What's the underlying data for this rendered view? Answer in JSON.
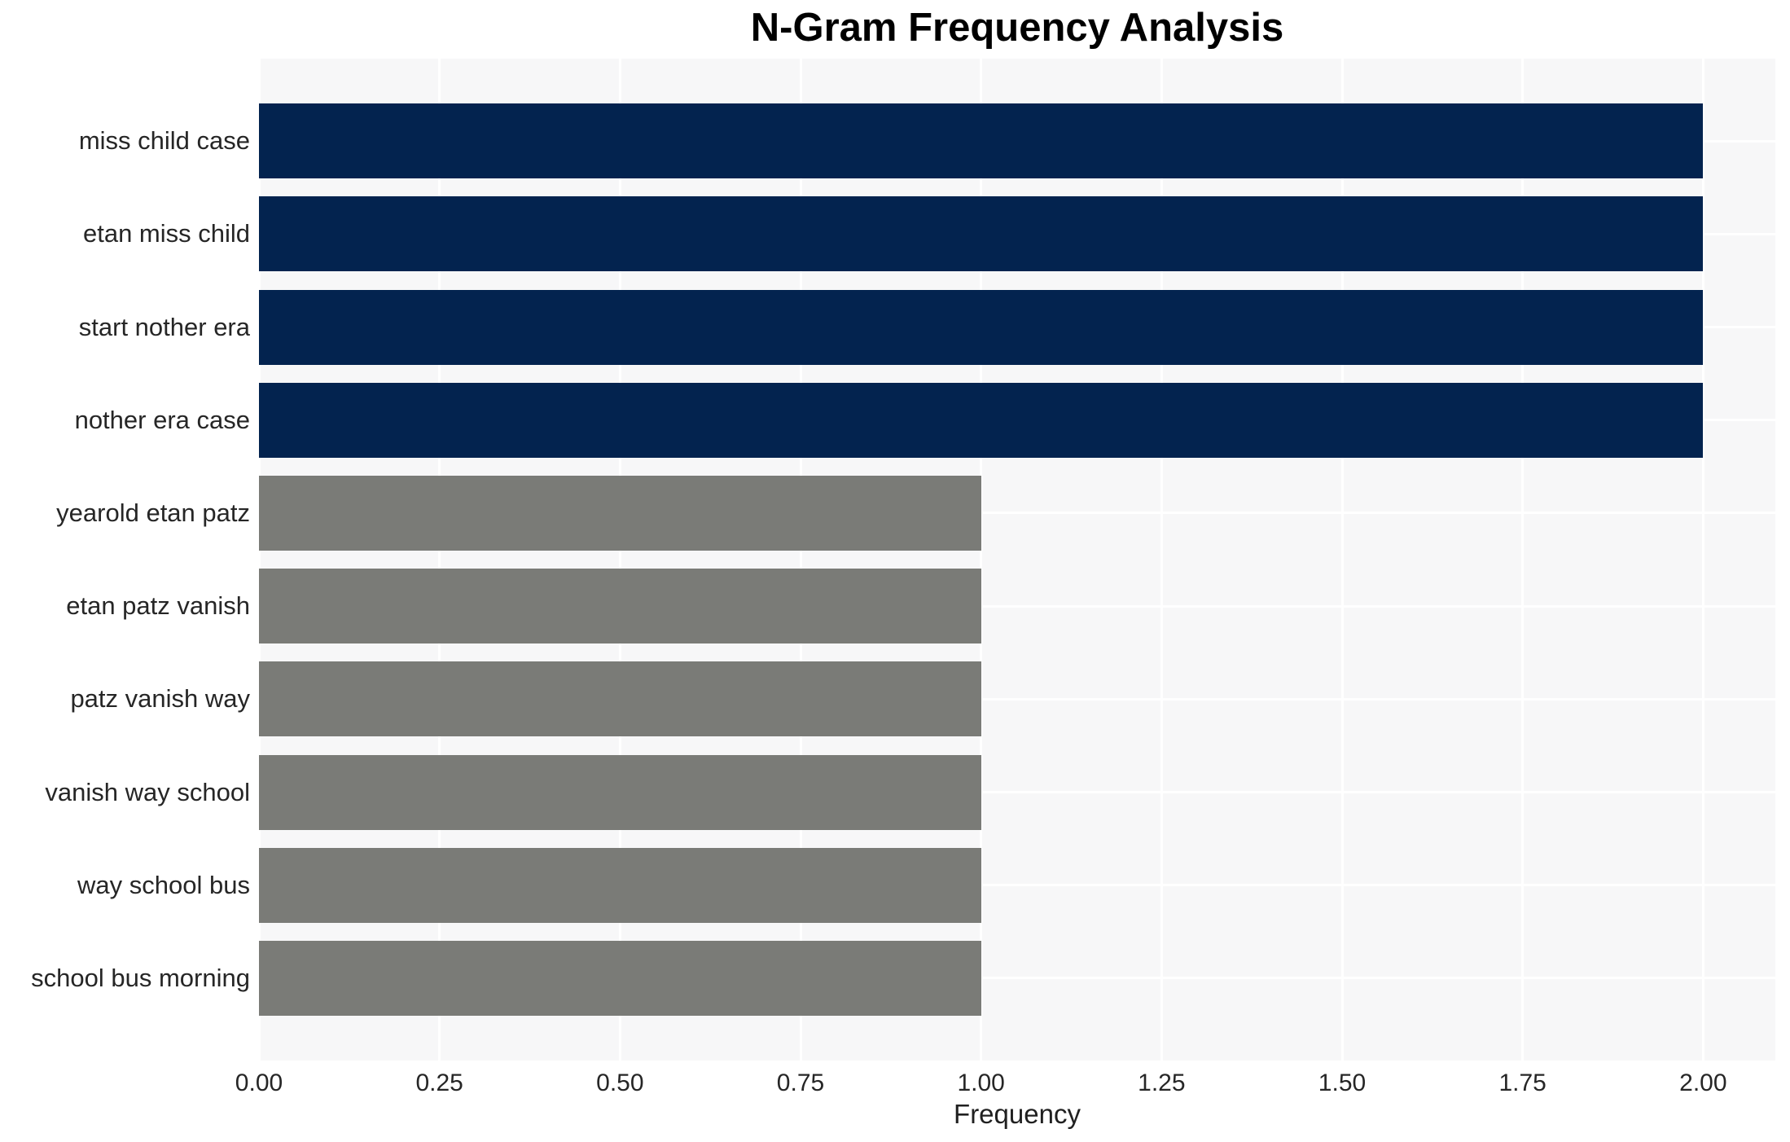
{
  "chart_data": {
    "type": "bar",
    "orientation": "horizontal",
    "title": "N-Gram Frequency Analysis",
    "xlabel": "Frequency",
    "ylabel": "",
    "categories": [
      "miss child case",
      "etan miss child",
      "start nother era",
      "nother era case",
      "yearold etan patz",
      "etan patz vanish",
      "patz vanish way",
      "vanish way school",
      "way school bus",
      "school bus morning"
    ],
    "values": [
      2,
      2,
      2,
      2,
      1,
      1,
      1,
      1,
      1,
      1
    ],
    "bar_colors": [
      "#03234f",
      "#03234f",
      "#03234f",
      "#03234f",
      "#7a7b77",
      "#7a7b77",
      "#7a7b77",
      "#7a7b77",
      "#7a7b77",
      "#7a7b77"
    ],
    "xlim": [
      0,
      2.1
    ],
    "xtick_values": [
      0,
      0.25,
      0.5,
      0.75,
      1.0,
      1.25,
      1.5,
      1.75,
      2.0
    ],
    "xtick_labels": [
      "0.00",
      "0.25",
      "0.50",
      "0.75",
      "1.00",
      "1.25",
      "1.50",
      "1.75",
      "2.00"
    ],
    "grid": true,
    "legend": false,
    "colors": {
      "high_freq_bar": "#03234f",
      "low_freq_bar": "#7a7b77",
      "plot_background": "#f7f7f8",
      "gridline": "#ffffff",
      "tick_label": "#262626",
      "title": "#000000"
    }
  }
}
